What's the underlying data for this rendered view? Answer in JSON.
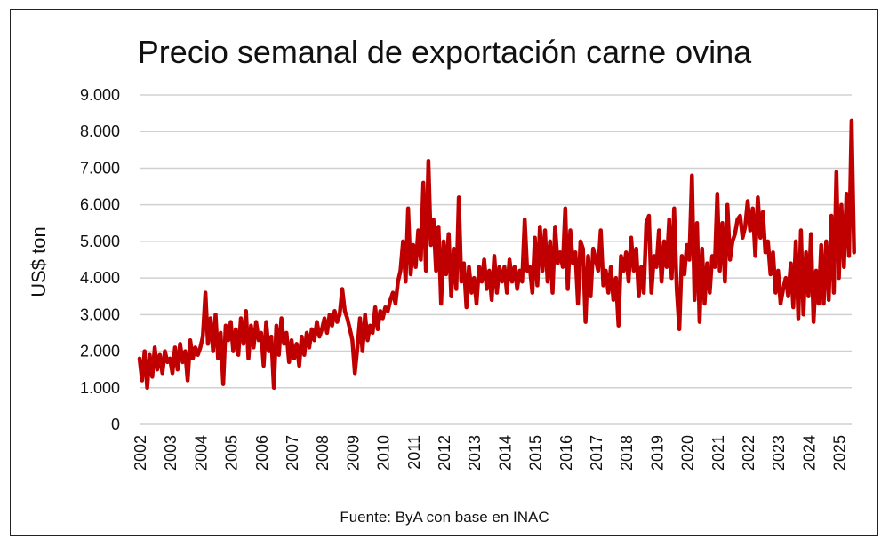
{
  "chart_data": {
    "type": "line",
    "title": "Precio semanal de exportación carne ovina",
    "ylabel": "US$ ton",
    "xlabel": "",
    "source": "Fuente: ByA con base en INAC",
    "ylim": [
      0,
      9000
    ],
    "y_ticks": [
      "0",
      "1.000",
      "2.000",
      "3.000",
      "4.000",
      "5.000",
      "6.000",
      "7.000",
      "8.000",
      "9.000"
    ],
    "x_ticks": [
      "2002",
      "2003",
      "2004",
      "2005",
      "2006",
      "2007",
      "2008",
      "2009",
      "2010",
      "2011",
      "2012",
      "2013",
      "2014",
      "2015",
      "2016",
      "2017",
      "2018",
      "2019",
      "2020",
      "2021",
      "2022",
      "2023",
      "2024",
      "2025"
    ],
    "grid": "horizontal",
    "legend": "none",
    "line_color": "#c00000",
    "series": [
      {
        "values_by_year": {
          "2002": [
            1800,
            1200,
            2000,
            1000,
            1900,
            1300,
            2100,
            1500,
            1900,
            1400,
            2000,
            1700
          ],
          "2003": [
            1800,
            1400,
            2100,
            1500,
            2200,
            1700,
            2000,
            1200,
            2300,
            1800,
            2100,
            1900
          ],
          "2004": [
            2100,
            2400,
            3600,
            2200,
            2900,
            2000,
            3000,
            1800,
            2500,
            1100,
            2700,
            2300
          ],
          "2005": [
            2800,
            2000,
            2600,
            1900,
            2900,
            2200,
            3100,
            1800,
            2700,
            2100,
            2800,
            2300
          ],
          "2006": [
            2500,
            1600,
            2800,
            2000,
            2400,
            1000,
            2700,
            1900,
            2900,
            2200,
            2500,
            1700
          ],
          "2007": [
            2300,
            1800,
            2200,
            1600,
            2400,
            1900,
            2500,
            2100,
            2600,
            2300,
            2800,
            2400
          ],
          "2008": [
            2600,
            2900,
            2500,
            3000,
            2700,
            3100,
            2800,
            3000,
            3700,
            3100,
            2900,
            2600
          ],
          "2009": [
            2300,
            1400,
            2100,
            2900,
            2000,
            3000,
            2300,
            2700,
            2500,
            3200,
            2600,
            3100
          ],
          "2010": [
            2900,
            3200,
            3100,
            3400,
            3600,
            3300,
            3900,
            4200,
            5000,
            3900,
            5900,
            4100
          ],
          "2011": [
            4900,
            4300,
            5300,
            4500,
            6600,
            4200,
            7200,
            4900,
            5600,
            4200,
            5400,
            3300
          ],
          "2012": [
            5000,
            4100,
            5200,
            3500,
            4800,
            3700,
            6200,
            3900,
            4400,
            3200,
            4300,
            3600
          ],
          "2013": [
            4000,
            3300,
            4300,
            3900,
            4500,
            3700,
            4200,
            3400,
            4600,
            3600,
            4300,
            3900
          ],
          "2014": [
            4300,
            3600,
            4500,
            3900,
            4300,
            3700,
            4200,
            3900,
            5600,
            4200,
            4300,
            3600
          ],
          "2015": [
            5100,
            3800,
            5400,
            4200,
            5300,
            3900,
            5000,
            3600,
            5400,
            4400,
            4700,
            4300
          ],
          "2016": [
            5900,
            3700,
            5300,
            4400,
            4700,
            3300,
            5000,
            4800,
            2800,
            4600,
            3500,
            4800
          ],
          "2017": [
            4500,
            4200,
            5300,
            3800,
            4200,
            3600,
            4300,
            3400,
            4000,
            2700,
            4600,
            4200
          ],
          "2018": [
            4700,
            3900,
            5100,
            4200,
            4800,
            3500,
            4300,
            3600,
            5500,
            5700,
            3600,
            4600
          ],
          "2019": [
            4300,
            5300,
            3900,
            5000,
            4300,
            5600,
            4000,
            5900,
            3700,
            2600,
            4600,
            4100
          ],
          "2020": [
            4900,
            4500,
            6800,
            3400,
            5500,
            2800,
            4800,
            3300,
            4400,
            3600,
            4600,
            4300
          ],
          "2021": [
            6300,
            4200,
            5500,
            3900,
            6000,
            4500,
            5000,
            5200,
            5600,
            5700,
            5100,
            5400
          ],
          "2022": [
            6100,
            5300,
            5900,
            4600,
            6200,
            5100,
            5800,
            4700,
            5000,
            4100,
            4700,
            3600
          ],
          "2023": [
            4200,
            3300,
            3700,
            4000,
            3500,
            4400,
            3200,
            5000,
            2900,
            5300,
            3000,
            4700
          ],
          "2024": [
            3500,
            5200,
            2800,
            4200,
            3300,
            4900,
            3300,
            5000,
            3400,
            5700,
            3600,
            6900
          ],
          "2025": [
            4000,
            6000,
            4300,
            6300,
            4600,
            8300,
            4700
          ]
        }
      }
    ]
  }
}
